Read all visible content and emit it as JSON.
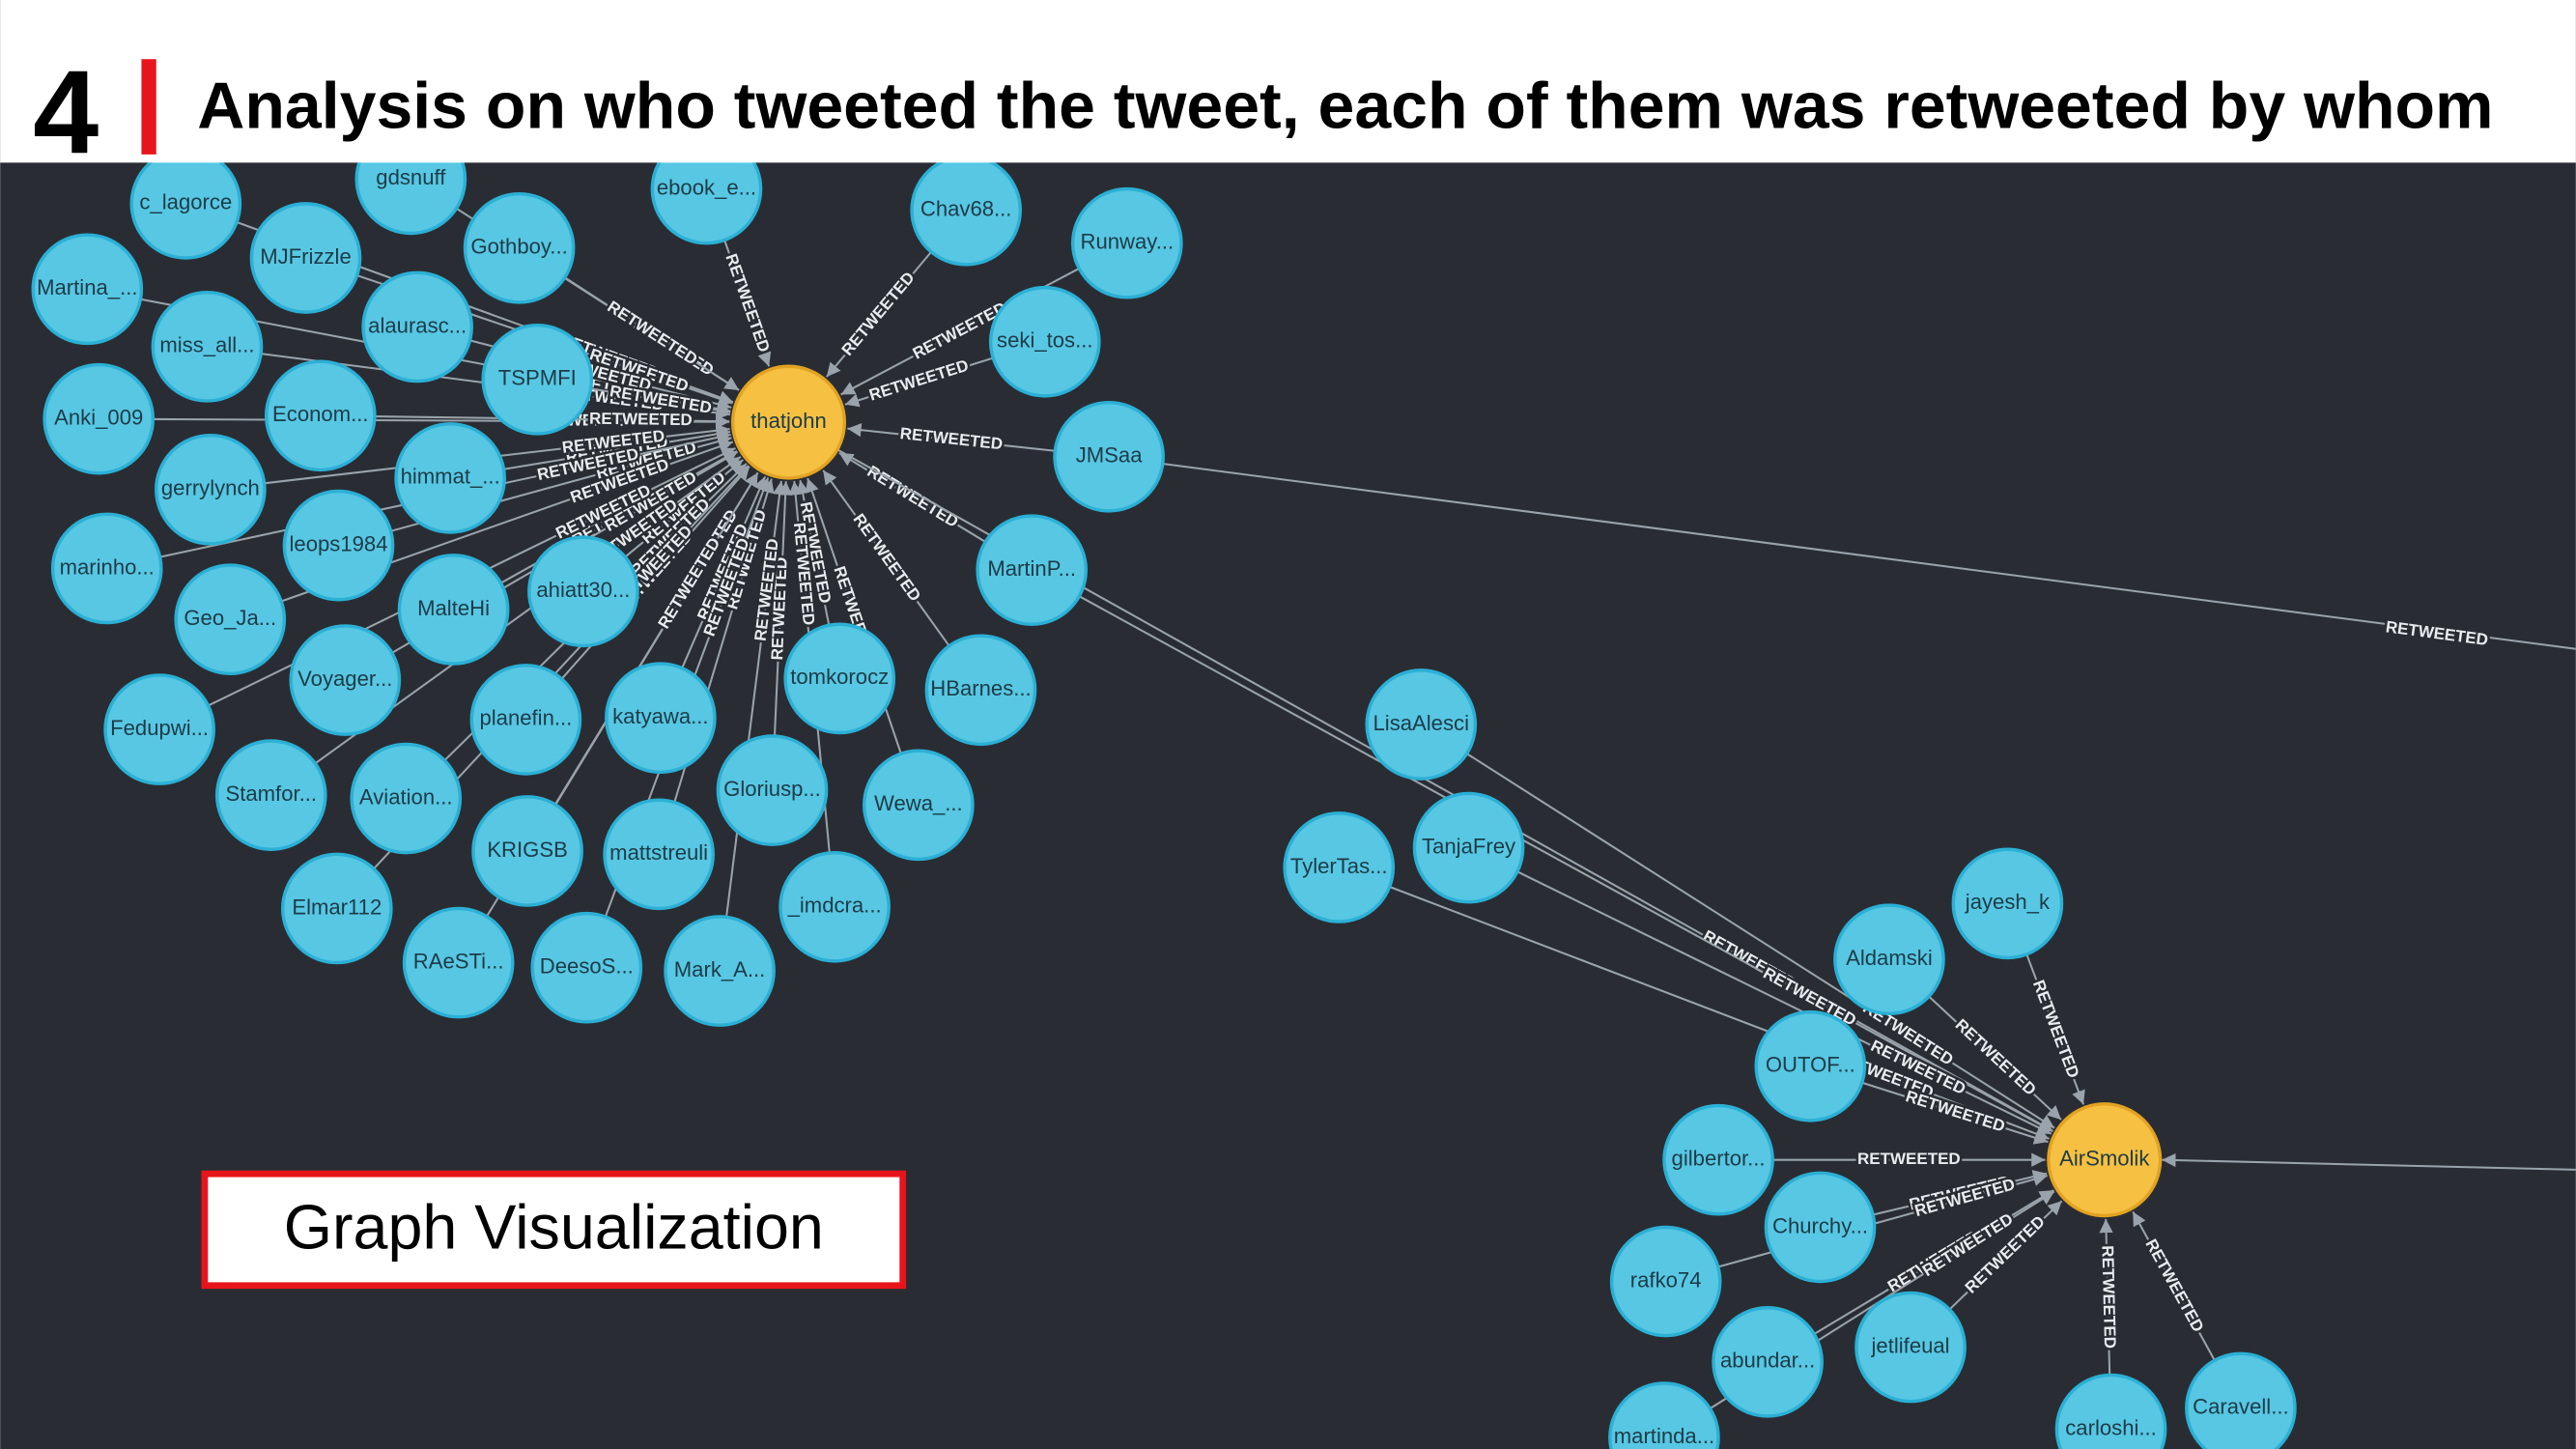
{
  "header": {
    "number": "4",
    "title": "Analysis on who tweeted the tweet, each of them was retweeted by whom"
  },
  "caption": "Graph Visualization",
  "graph": {
    "edge_label": "RETWEETED",
    "nodes": [
      {
        "label": "thatjohn",
        "kind": "tweeter"
      },
      {
        "label": "AirSmolik",
        "kind": "tweeter"
      },
      {
        "label": "c_lagorce",
        "kind": "retweeter"
      },
      {
        "label": "gdsnuff",
        "kind": "retweeter"
      },
      {
        "label": "ebook_e...",
        "kind": "retweeter"
      },
      {
        "label": "Chav68...",
        "kind": "retweeter"
      },
      {
        "label": "Runway...",
        "kind": "retweeter"
      },
      {
        "label": "MJFrizzle",
        "kind": "retweeter"
      },
      {
        "label": "Gothboy...",
        "kind": "retweeter"
      },
      {
        "label": "Martina_...",
        "kind": "retweeter"
      },
      {
        "label": "alaurasc...",
        "kind": "retweeter"
      },
      {
        "label": "seki_tos...",
        "kind": "retweeter"
      },
      {
        "label": "miss_all...",
        "kind": "retweeter"
      },
      {
        "label": "TSPMFI",
        "kind": "retweeter"
      },
      {
        "label": "Anki_009",
        "kind": "retweeter"
      },
      {
        "label": "Econom...",
        "kind": "retweeter"
      },
      {
        "label": "JMSaa",
        "kind": "retweeter"
      },
      {
        "label": "himmat_...",
        "kind": "retweeter"
      },
      {
        "label": "gerrylynch",
        "kind": "retweeter"
      },
      {
        "label": "leops1984",
        "kind": "retweeter"
      },
      {
        "label": "MartinP...",
        "kind": "retweeter"
      },
      {
        "label": "marinho...",
        "kind": "retweeter"
      },
      {
        "label": "ahiatt30...",
        "kind": "retweeter"
      },
      {
        "label": "MalteHi",
        "kind": "retweeter"
      },
      {
        "label": "Geo_Ja...",
        "kind": "retweeter"
      },
      {
        "label": "Voyager...",
        "kind": "retweeter"
      },
      {
        "label": "tomkorocz",
        "kind": "retweeter"
      },
      {
        "label": "HBarnes...",
        "kind": "retweeter"
      },
      {
        "label": "Fedupwi...",
        "kind": "retweeter"
      },
      {
        "label": "planefin...",
        "kind": "retweeter"
      },
      {
        "label": "katyawa...",
        "kind": "retweeter"
      },
      {
        "label": "Stamfor...",
        "kind": "retweeter"
      },
      {
        "label": "Aviation...",
        "kind": "retweeter"
      },
      {
        "label": "Gloriusp...",
        "kind": "retweeter"
      },
      {
        "label": "Wewa_...",
        "kind": "retweeter"
      },
      {
        "label": "KRIGSB",
        "kind": "retweeter"
      },
      {
        "label": "mattstreuli",
        "kind": "retweeter"
      },
      {
        "label": "_imdcra...",
        "kind": "retweeter"
      },
      {
        "label": "Elmar112",
        "kind": "retweeter"
      },
      {
        "label": "RAeSTi...",
        "kind": "retweeter"
      },
      {
        "label": "DeesoS...",
        "kind": "retweeter"
      },
      {
        "label": "Mark_A...",
        "kind": "retweeter"
      },
      {
        "label": "LisaAlesci",
        "kind": "retweeter"
      },
      {
        "label": "TanjaFrey",
        "kind": "retweeter"
      },
      {
        "label": "TylerTas...",
        "kind": "retweeter"
      },
      {
        "label": "jayesh_k",
        "kind": "retweeter"
      },
      {
        "label": "Aldamski",
        "kind": "retweeter"
      },
      {
        "label": "OUTOF...",
        "kind": "retweeter"
      },
      {
        "label": "gilbertor...",
        "kind": "retweeter"
      },
      {
        "label": "Churchy...",
        "kind": "retweeter"
      },
      {
        "label": "rafko74",
        "kind": "retweeter"
      },
      {
        "label": "abundar...",
        "kind": "retweeter"
      },
      {
        "label": "jetlifeual",
        "kind": "retweeter"
      },
      {
        "label": "carloshi...",
        "kind": "retweeter"
      },
      {
        "label": "Caravell...",
        "kind": "retweeter"
      },
      {
        "label": "martinda...",
        "kind": "retweeter"
      }
    ],
    "edges": [
      [
        2,
        0
      ],
      [
        3,
        0
      ],
      [
        4,
        0
      ],
      [
        5,
        0
      ],
      [
        6,
        0
      ],
      [
        7,
        0
      ],
      [
        8,
        0
      ],
      [
        9,
        0
      ],
      [
        10,
        0
      ],
      [
        11,
        0
      ],
      [
        12,
        0
      ],
      [
        13,
        0
      ],
      [
        14,
        0
      ],
      [
        15,
        0
      ],
      [
        16,
        0
      ],
      [
        17,
        0
      ],
      [
        18,
        0
      ],
      [
        19,
        0
      ],
      [
        20,
        0
      ],
      [
        21,
        0
      ],
      [
        22,
        0
      ],
      [
        23,
        0
      ],
      [
        24,
        0
      ],
      [
        25,
        0
      ],
      [
        26,
        0
      ],
      [
        27,
        0
      ],
      [
        28,
        0
      ],
      [
        29,
        0
      ],
      [
        30,
        0
      ],
      [
        31,
        0
      ],
      [
        32,
        0
      ],
      [
        33,
        0
      ],
      [
        34,
        0
      ],
      [
        35,
        0
      ],
      [
        36,
        0
      ],
      [
        37,
        0
      ],
      [
        38,
        0
      ],
      [
        39,
        0
      ],
      [
        40,
        0
      ],
      [
        41,
        0
      ],
      [
        0,
        1
      ],
      [
        20,
        1
      ],
      [
        42,
        1
      ],
      [
        43,
        1
      ],
      [
        44,
        1
      ],
      [
        45,
        1
      ],
      [
        46,
        1
      ],
      [
        47,
        1
      ],
      [
        48,
        1
      ],
      [
        49,
        1
      ],
      [
        50,
        1
      ],
      [
        51,
        1
      ],
      [
        52,
        1
      ],
      [
        53,
        1
      ],
      [
        54,
        1
      ],
      [
        55,
        1
      ]
    ]
  }
}
